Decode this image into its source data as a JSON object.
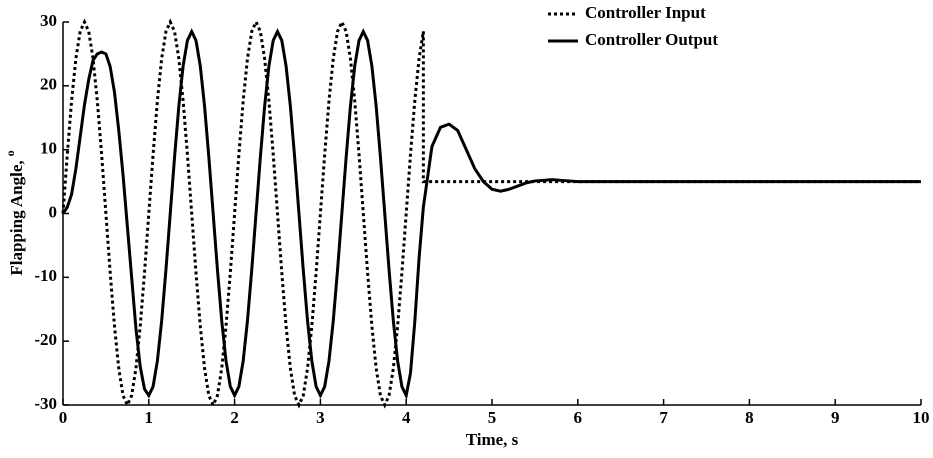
{
  "chart_data": {
    "type": "line",
    "x_label": "Time, s",
    "y_label": "Flapping Angle,",
    "y_label_unit": "o",
    "x": [
      0,
      0.05,
      0.1,
      0.15,
      0.2,
      0.25,
      0.3,
      0.35,
      0.4,
      0.45,
      0.5,
      0.55,
      0.6,
      0.65,
      0.7,
      0.75,
      0.8,
      0.85,
      0.9,
      0.95,
      1,
      1.05,
      1.1,
      1.15,
      1.2,
      1.25,
      1.3,
      1.35,
      1.4,
      1.45,
      1.5,
      1.55,
      1.6,
      1.65,
      1.7,
      1.75,
      1.8,
      1.85,
      1.9,
      1.95,
      2,
      2.05,
      2.1,
      2.15,
      2.2,
      2.25,
      2.3,
      2.35,
      2.4,
      2.45,
      2.5,
      2.55,
      2.6,
      2.65,
      2.7,
      2.75,
      2.8,
      2.85,
      2.9,
      2.95,
      3,
      3.05,
      3.1,
      3.15,
      3.2,
      3.25,
      3.3,
      3.35,
      3.4,
      3.45,
      3.5,
      3.55,
      3.6,
      3.65,
      3.7,
      3.75,
      3.8,
      3.85,
      3.9,
      3.95,
      4,
      4.05,
      4.1,
      4.15,
      4.2,
      4.2,
      4.3,
      4.4,
      4.5,
      4.6,
      4.7,
      4.8,
      4.9,
      5,
      5.1,
      5.2,
      5.3,
      5.4,
      5.5,
      5.6,
      5.7,
      5.8,
      5.9,
      6,
      10
    ],
    "series": [
      {
        "name": "Controller Input",
        "color": "#000000",
        "style": "dotted",
        "values": [
          0,
          9.27,
          17.63,
          24.27,
          28.53,
          30,
          28.53,
          24.27,
          17.63,
          9.27,
          0,
          -9.27,
          -17.63,
          -24.27,
          -28.53,
          -30,
          -28.53,
          -24.27,
          -17.63,
          -9.27,
          0,
          9.27,
          17.63,
          24.27,
          28.53,
          30,
          28.53,
          24.27,
          17.63,
          9.27,
          0,
          -9.27,
          -17.63,
          -24.27,
          -28.53,
          -30,
          -28.53,
          -24.27,
          -17.63,
          -9.27,
          0,
          9.27,
          17.63,
          24.27,
          28.53,
          30,
          28.53,
          24.27,
          17.63,
          9.27,
          0,
          -9.27,
          -17.63,
          -24.27,
          -28.53,
          -30,
          -28.53,
          -24.27,
          -17.63,
          -9.27,
          0,
          9.27,
          17.63,
          24.27,
          28.53,
          30,
          28.53,
          24.27,
          17.63,
          9.27,
          0,
          -9.27,
          -17.63,
          -24.27,
          -28.53,
          -30,
          -28.53,
          -24.27,
          -17.63,
          -9.27,
          0,
          9.27,
          17.63,
          24.27,
          28.53,
          5,
          5,
          5,
          5,
          5,
          5,
          5,
          5,
          5,
          5,
          5,
          5,
          5,
          5,
          5,
          5,
          5,
          5,
          5,
          5
        ]
      },
      {
        "name": "Controller Output",
        "color": "#000000",
        "style": "solid",
        "values": [
          0,
          1,
          3,
          7,
          12,
          17,
          21,
          24,
          25,
          25.3,
          25,
          23,
          19,
          13,
          6,
          -2,
          -10,
          -18,
          -24,
          -27.5,
          -28.5,
          -27.1,
          -23.1,
          -16.8,
          -8.8,
          0,
          8.8,
          16.8,
          23.1,
          27.1,
          28.5,
          27.1,
          23.1,
          16.8,
          8.8,
          0,
          -8.8,
          -16.8,
          -23.1,
          -27.1,
          -28.5,
          -27.1,
          -23.1,
          -16.8,
          -8.8,
          0,
          8.8,
          16.8,
          23.1,
          27.1,
          28.5,
          27.1,
          23.1,
          16.8,
          8.8,
          0,
          -8.8,
          -16.8,
          -23.1,
          -27.1,
          -28.5,
          -27.1,
          -23.1,
          -16.8,
          -8.8,
          0,
          8.8,
          16.8,
          23.1,
          27.1,
          28.5,
          27.1,
          23.1,
          16.8,
          8.8,
          0,
          -8.8,
          -16.8,
          -23.1,
          -27.1,
          -28.5,
          -25,
          -17,
          -7,
          1,
          1,
          10.5,
          13.5,
          14,
          13,
          10,
          7,
          5,
          3.8,
          3.5,
          3.8,
          4.3,
          4.8,
          5.1,
          5.2,
          5.3,
          5.2,
          5.1,
          5,
          5
        ]
      }
    ],
    "xlim": [
      0,
      10
    ],
    "xticks": [
      0,
      1,
      2,
      3,
      4,
      5,
      6,
      7,
      8,
      9,
      10
    ],
    "ylim": [
      -30,
      30
    ],
    "yticks": [
      -30,
      -20,
      -10,
      0,
      10,
      20,
      30
    ],
    "grid": false,
    "legend": "upper right"
  }
}
